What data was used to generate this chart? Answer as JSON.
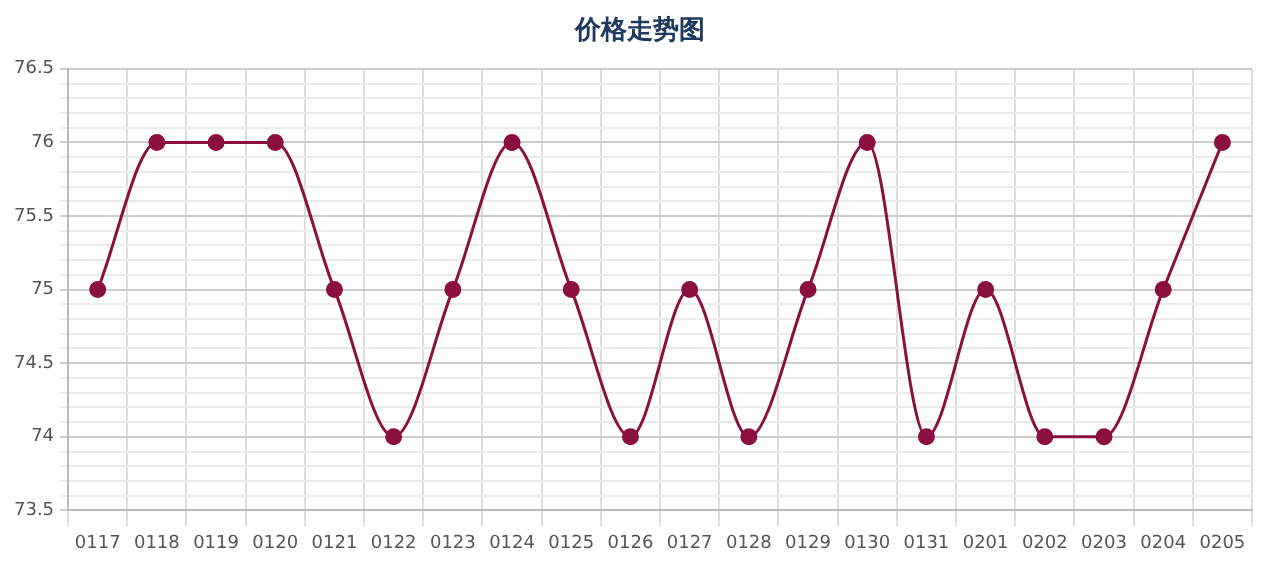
{
  "chart_data": {
    "type": "line",
    "title": "价格走势图",
    "categories": [
      "0117",
      "0118",
      "0119",
      "0120",
      "0121",
      "0122",
      "0123",
      "0124",
      "0125",
      "0126",
      "0127",
      "0128",
      "0129",
      "0130",
      "0131",
      "0201",
      "0202",
      "0203",
      "0204",
      "0205"
    ],
    "series": [
      {
        "color": "#8b1040",
        "values": [
          75,
          76,
          76,
          76,
          75,
          74,
          75,
          76,
          75,
          74,
          75,
          74,
          75,
          76,
          74,
          75,
          74,
          74,
          75,
          76
        ]
      }
    ],
    "ylim": [
      73.5,
      76.5
    ],
    "yticks": [
      73.5,
      {
        "value": 73.6,
        "label": null
      },
      {
        "value": 73.7,
        "label": null
      },
      {
        "value": 73.8,
        "label": null
      },
      {
        "value": 73.9,
        "label": null
      },
      74,
      {
        "value": 74.1,
        "label": null
      },
      {
        "value": 74.2,
        "label": null
      },
      {
        "value": 74.3,
        "label": null
      },
      {
        "value": 74.4,
        "label": null
      },
      74.5,
      {
        "value": 74.6,
        "label": null
      },
      {
        "value": 74.7,
        "label": null
      },
      {
        "value": 74.8,
        "label": null
      },
      {
        "value": 74.9,
        "label": null
      },
      75,
      {
        "value": 75.1,
        "label": null
      },
      {
        "value": 75.2,
        "label": null
      },
      {
        "value": 75.3,
        "label": null
      },
      {
        "value": 75.4,
        "label": null
      },
      75.5,
      {
        "value": 75.6,
        "label": null
      },
      {
        "value": 75.7,
        "label": null
      },
      {
        "value": 75.8,
        "label": null
      },
      {
        "value": 75.9,
        "label": null
      },
      76,
      {
        "value": 76.1,
        "label": null
      },
      {
        "value": 76.2,
        "label": null
      },
      {
        "value": 76.3,
        "label": null
      },
      {
        "value": 76.4,
        "label": null
      },
      76.5
    ],
    "grid": true,
    "legend": false,
    "marker": "circle",
    "line_style": "solid"
  }
}
